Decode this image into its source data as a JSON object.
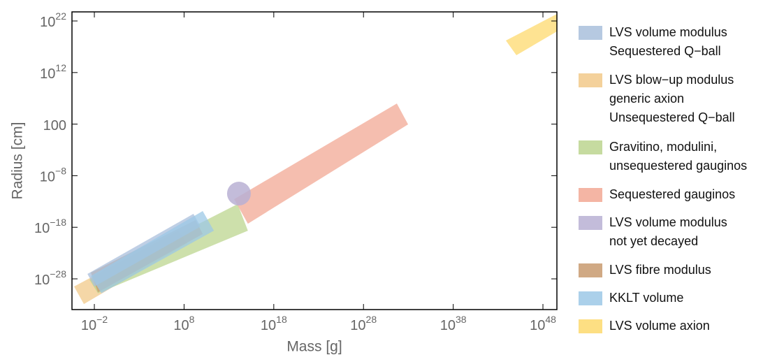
{
  "chart_data": {
    "type": "region",
    "xlabel": "Mass [g]",
    "ylabel": "Radius [cm]",
    "xscale": "log",
    "yscale": "log",
    "xlim": [
      3.2e-05,
      3.6e+49
    ],
    "ylim": [
      1.1e-34,
      5.8e+23
    ],
    "xticks": [
      {
        "value": 0.01,
        "label": "10",
        "exponent": "−2"
      },
      {
        "value": 100000000.0,
        "label": "10",
        "exponent": "8"
      },
      {
        "value": 1e+18,
        "label": "10",
        "exponent": "18"
      },
      {
        "value": 1e+28,
        "label": "10",
        "exponent": "28"
      },
      {
        "value": 1e+38,
        "label": "10",
        "exponent": "38"
      },
      {
        "value": 1e+48,
        "label": "10",
        "exponent": "48"
      }
    ],
    "yticks": [
      {
        "value": 1e+22,
        "label": "10",
        "exponent": "22"
      },
      {
        "value": 1000000000000.0,
        "label": "10",
        "exponent": "12"
      },
      100,
      {
        "value": 1e-08,
        "label": "10",
        "exponent": "−8"
      },
      {
        "value": 1e-18,
        "label": "10",
        "exponent": "−18"
      },
      {
        "value": 1e-28,
        "label": "10",
        "exponent": "−28"
      }
    ],
    "legend": "right",
    "series": [
      {
        "name": [
          "LVS volume modulus",
          "Sequestered Q−ball"
        ],
        "color": "#a9bfdc",
        "shape": "polygon",
        "x": [
          0.0017,
          1100000000.0,
          6900000000.0,
          0.01
        ],
        "y": [
          8.9e-28,
          4e-16,
          1.4e-18,
          3.2e-30
        ]
      },
      {
        "name": [
          "LVS blow−up modulus",
          "generic axion",
          "Unsequestered Q−ball"
        ],
        "color": "#f2c98a",
        "shape": "polygon",
        "x": [
          5.5e-05,
          22000000.0,
          230000000.0,
          0.00068
        ],
        "y": [
          3.2e-30,
          2.2e-19,
          7.9e-22,
          1.3e-33
        ]
      },
      {
        "name": [
          "Gravitino, modulini,",
          "unsequestered gauginos"
        ],
        "color": "#bcd58f",
        "shape": "polygon",
        "x": [
          0.0028,
          93000000000000.0,
          1300000000000000.0,
          0.025
        ],
        "y": [
          7.2e-29,
          3.2e-14,
          2.2e-19,
          1.6e-31
        ]
      },
      {
        "name": [
          "Sequestered gauginos"
        ],
        "color": "#f2a894",
        "shape": "polygon",
        "x": [
          38000000000000.0,
          5.2e+31,
          9.3e+32,
          1300000000000000.0
        ],
        "y": [
          2.8e-13,
          1000000.0,
          89,
          5e-18
        ]
      },
      {
        "name": [
          "LVS volume modulus",
          "not yet decayed"
        ],
        "color": "#b8b0d4",
        "shape": "circle",
        "x": [
          130000000000000.0
        ],
        "y": [
          3.4e-12
        ]
      },
      {
        "name": [
          "LVS fibre modulus"
        ],
        "color": "#c89a6e",
        "shape": "polygon",
        "x": [
          0.0041,
          1900000000.0,
          12000000000.0,
          0.025
        ],
        "y": [
          1.6e-27,
          2.5e-17,
          5e-20,
          2.5e-31
        ]
      },
      {
        "name": [
          "KKLT volume"
        ],
        "color": "#9cc8e6",
        "shape": "polygon",
        "x": [
          0.0041,
          12000000000.0,
          210000000000.0,
          0.06
        ],
        "y": [
          3.5e-28,
          1.4e-15,
          2.2e-19,
          1.6e-31
        ]
      },
      {
        "name": [
          "LVS volume axion"
        ],
        "color": "#fdd96d",
        "shape": "polygon",
        "x": [
          7.4e+43,
          3.6e+49,
          3.6e+49,
          1.1e+45
        ],
        "y": [
          1.6e+18,
          2.3e+23,
          9.3e+19,
          2300000000000000.0
        ]
      }
    ]
  }
}
